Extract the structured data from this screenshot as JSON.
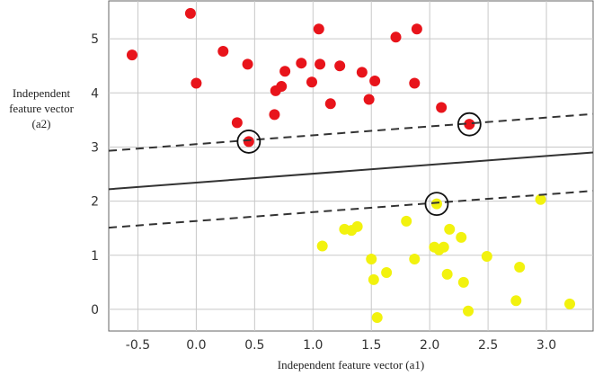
{
  "chart_data": {
    "type": "scatter",
    "title": "",
    "xlabel": "Independent feature vector (a1)",
    "ylabel": [
      "Independent",
      "feature vector",
      "(a2)"
    ],
    "xlim": [
      -0.75,
      3.4
    ],
    "ylim": [
      -0.4,
      5.7
    ],
    "xticks": [
      "-0.5",
      "0.0",
      "0.5",
      "1.0",
      "1.5",
      "2.0",
      "2.5",
      "3.0"
    ],
    "xtick_values": [
      -0.5,
      0.0,
      0.5,
      1.0,
      1.5,
      2.0,
      2.5,
      3.0
    ],
    "yticks": [
      "0",
      "1",
      "2",
      "3",
      "4",
      "5"
    ],
    "ytick_values": [
      0,
      1,
      2,
      3,
      4,
      5
    ],
    "grid": true,
    "series": [
      {
        "color": "#e8141b",
        "points": [
          [
            -0.55,
            4.7
          ],
          [
            -0.05,
            5.47
          ],
          [
            0.0,
            4.18
          ],
          [
            0.23,
            4.77
          ],
          [
            0.35,
            3.45
          ],
          [
            0.44,
            4.53
          ],
          [
            0.45,
            3.1
          ],
          [
            0.67,
            3.6
          ],
          [
            0.68,
            4.04
          ],
          [
            0.73,
            4.12
          ],
          [
            0.76,
            4.4
          ],
          [
            0.9,
            4.55
          ],
          [
            0.99,
            4.2
          ],
          [
            1.05,
            5.18
          ],
          [
            1.06,
            4.53
          ],
          [
            1.15,
            3.8
          ],
          [
            1.23,
            4.5
          ],
          [
            1.42,
            4.38
          ],
          [
            1.48,
            3.88
          ],
          [
            1.53,
            4.22
          ],
          [
            1.71,
            5.03
          ],
          [
            1.87,
            4.18
          ],
          [
            1.89,
            5.18
          ],
          [
            2.1,
            3.73
          ],
          [
            2.34,
            3.42
          ]
        ]
      },
      {
        "color": "#f2f20e",
        "points": [
          [
            1.08,
            1.17
          ],
          [
            1.27,
            1.48
          ],
          [
            1.33,
            1.46
          ],
          [
            1.38,
            1.53
          ],
          [
            1.5,
            0.93
          ],
          [
            1.52,
            0.55
          ],
          [
            1.55,
            -0.15
          ],
          [
            1.63,
            0.68
          ],
          [
            1.8,
            1.63
          ],
          [
            1.87,
            0.93
          ],
          [
            2.04,
            1.15
          ],
          [
            2.06,
            1.95
          ],
          [
            2.08,
            1.1
          ],
          [
            2.12,
            1.15
          ],
          [
            2.15,
            0.65
          ],
          [
            2.17,
            1.48
          ],
          [
            2.27,
            1.33
          ],
          [
            2.29,
            0.5
          ],
          [
            2.33,
            -0.03
          ],
          [
            2.49,
            0.98
          ],
          [
            2.74,
            0.16
          ],
          [
            2.77,
            0.78
          ],
          [
            2.95,
            2.03
          ],
          [
            3.2,
            0.1
          ]
        ]
      }
    ],
    "lines": [
      {
        "style": "solid",
        "from": [
          -0.75,
          2.22
        ],
        "to": [
          3.4,
          2.9
        ]
      },
      {
        "style": "dashed",
        "from": [
          -0.75,
          2.93
        ],
        "to": [
          3.4,
          3.61
        ]
      },
      {
        "style": "dashed",
        "from": [
          -0.75,
          1.51
        ],
        "to": [
          3.4,
          2.19
        ]
      }
    ],
    "support_vectors": [
      [
        0.45,
        3.1
      ],
      [
        2.34,
        3.42
      ],
      [
        2.06,
        1.95
      ]
    ],
    "colors": {
      "grid": "#c8c8c8",
      "plot_background": "#ffffff",
      "frame": "#666666",
      "line": "#333333"
    }
  }
}
